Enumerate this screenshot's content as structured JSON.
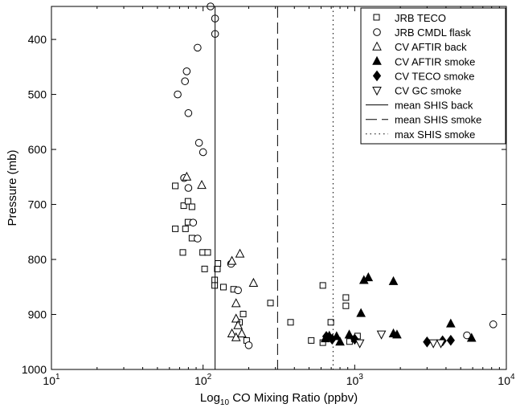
{
  "chart_data": {
    "type": "scatter",
    "title": "",
    "xlabel_prefix": "Log",
    "xlabel_subscript": "10",
    "xlabel_rest": " CO Mixing Ratio (ppbv)",
    "ylabel": "Pressure (mb)",
    "xscale": "log",
    "xlim": [
      10,
      10000
    ],
    "ylim": [
      1000,
      340
    ],
    "y_inverted": true,
    "grid": false,
    "legend_position": "top-right",
    "x_ticks": [
      {
        "base": "10",
        "exp": "1",
        "value": 10
      },
      {
        "base": "10",
        "exp": "2",
        "value": 100
      },
      {
        "base": "10",
        "exp": "3",
        "value": 1000
      },
      {
        "base": "10",
        "exp": "4",
        "value": 10000
      }
    ],
    "y_ticks": [
      "400",
      "500",
      "600",
      "700",
      "800",
      "900",
      "1000"
    ],
    "series": [
      {
        "name": "JRB TECO",
        "marker": "square-open",
        "points": [
          [
            66,
            667
          ],
          [
            66,
            745
          ],
          [
            75,
            703
          ],
          [
            74,
            788
          ],
          [
            77,
            745
          ],
          [
            80,
            695
          ],
          [
            80,
            733
          ],
          [
            85,
            705
          ],
          [
            85,
            762
          ],
          [
            100,
            788
          ],
          [
            103,
            818
          ],
          [
            108,
            788
          ],
          [
            120,
            838
          ],
          [
            120,
            848
          ],
          [
            125,
            818
          ],
          [
            126,
            808
          ],
          [
            137,
            851
          ],
          [
            160,
            855
          ],
          [
            175,
            915
          ],
          [
            185,
            900
          ],
          [
            195,
            948
          ],
          [
            280,
            880
          ],
          [
            380,
            915
          ],
          [
            520,
            948
          ],
          [
            620,
            952
          ],
          [
            700,
            915
          ],
          [
            620,
            848
          ],
          [
            880,
            870
          ],
          [
            880,
            885
          ],
          [
            930,
            950
          ],
          [
            1000,
            945
          ],
          [
            1050,
            940
          ]
        ]
      },
      {
        "name": "JRB CMDL flask",
        "marker": "circle-open",
        "points": [
          [
            112,
            340
          ],
          [
            120,
            362
          ],
          [
            120,
            390
          ],
          [
            92,
            415
          ],
          [
            78,
            458
          ],
          [
            76,
            476
          ],
          [
            68,
            500
          ],
          [
            80,
            534
          ],
          [
            94,
            588
          ],
          [
            100,
            605
          ],
          [
            75,
            652
          ],
          [
            80,
            670
          ],
          [
            86,
            733
          ],
          [
            92,
            762
          ],
          [
            153,
            808
          ],
          [
            170,
            856
          ],
          [
            200,
            956
          ],
          [
            5500,
            938
          ],
          [
            8200,
            918
          ]
        ]
      },
      {
        "name": "CV AFTIR back",
        "marker": "triangle-up-open",
        "points": [
          [
            78,
            650
          ],
          [
            98,
            665
          ],
          [
            155,
            803
          ],
          [
            175,
            790
          ],
          [
            215,
            843
          ],
          [
            165,
            880
          ],
          [
            165,
            908
          ],
          [
            170,
            920
          ],
          [
            155,
            935
          ],
          [
            165,
            942
          ],
          [
            180,
            935
          ]
        ]
      },
      {
        "name": "CV AFTIR smoke",
        "marker": "triangle-up-filled",
        "points": [
          [
            1150,
            838
          ],
          [
            1230,
            833
          ],
          [
            1800,
            840
          ],
          [
            1100,
            898
          ],
          [
            4300,
            917
          ],
          [
            5900,
            943
          ],
          [
            1800,
            935
          ],
          [
            1900,
            937
          ],
          [
            920,
            937
          ],
          [
            640,
            944
          ],
          [
            680,
            939
          ],
          [
            760,
            940
          ],
          [
            800,
            950
          ]
        ]
      },
      {
        "name": "CV TECO smoke",
        "marker": "diamond-filled",
        "points": [
          [
            650,
            940
          ],
          [
            710,
            945
          ],
          [
            1000,
            945
          ],
          [
            3000,
            950
          ],
          [
            3800,
            948
          ],
          [
            4300,
            947
          ]
        ]
      },
      {
        "name": "CV GC smoke",
        "marker": "triangle-down-open",
        "points": [
          [
            1080,
            952
          ],
          [
            1500,
            936
          ],
          [
            3300,
            952
          ],
          [
            3700,
            952
          ]
        ]
      },
      {
        "name": "mean SHIS back",
        "line_style": "solid",
        "x": 120
      },
      {
        "name": "mean SHIS smoke",
        "line_style": "dashed",
        "x": 310
      },
      {
        "name": "max SHIS smoke",
        "line_style": "dotted",
        "x": 720
      }
    ]
  }
}
